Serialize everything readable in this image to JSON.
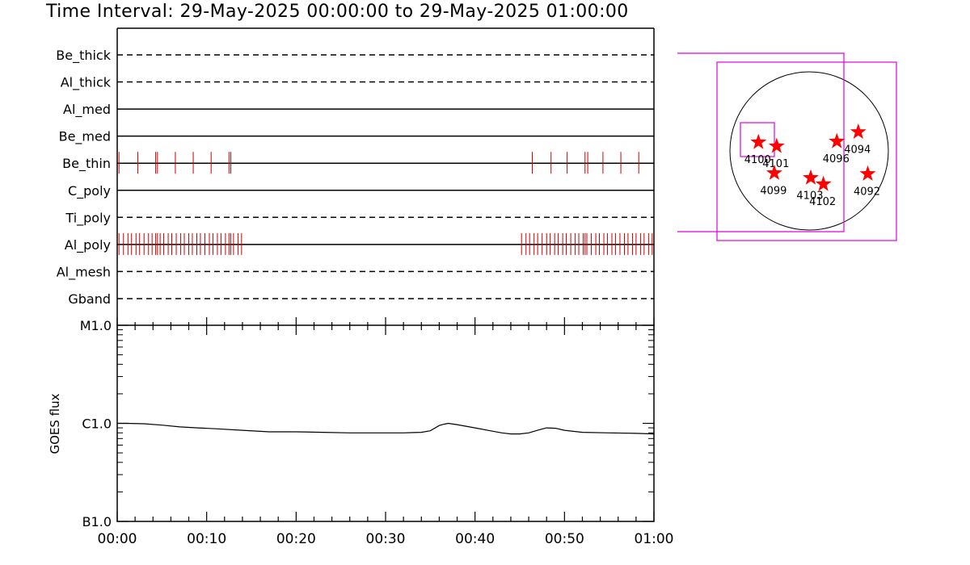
{
  "header": {
    "title": "Time Interval: 29-May-2025 00:00:00 to 29-May-2025 01:00:00"
  },
  "colors": {
    "axis": "#000000",
    "event_ticks": "#cc0000",
    "fov_box": "#e000e0",
    "star": "#ff0000"
  },
  "chart_data": [
    {
      "type": "timeline",
      "title": "",
      "x_unit": "minutes after 29-May-2025 00:00:00",
      "xlim": [
        0,
        60
      ],
      "channels": [
        {
          "name": "Be_thick",
          "style": "dashed",
          "events": []
        },
        {
          "name": "Al_thick",
          "style": "dashed",
          "events": []
        },
        {
          "name": "Al_med",
          "style": "solid",
          "events": []
        },
        {
          "name": "Be_med",
          "style": "solid",
          "events": []
        },
        {
          "name": "Be_thin",
          "style": "solid",
          "events": [
            0.2,
            2.3,
            4.3,
            4.5,
            6.5,
            8.5,
            10.5,
            12.5,
            12.7,
            46.4,
            48.5,
            50.3,
            52.3,
            52.6,
            54.3,
            56.3,
            58.3
          ]
        },
        {
          "name": "C_poly",
          "style": "solid",
          "events": []
        },
        {
          "name": "Ti_poly",
          "style": "dashed",
          "events": []
        },
        {
          "name": "Al_poly",
          "style": "solid",
          "events": [
            0.2,
            0.7,
            1.2,
            1.6,
            2.1,
            2.5,
            3.0,
            3.5,
            3.9,
            4.3,
            4.5,
            4.8,
            5.2,
            5.7,
            6.1,
            6.6,
            7.1,
            7.5,
            8.0,
            8.4,
            8.9,
            9.3,
            9.8,
            10.3,
            10.7,
            11.2,
            11.6,
            12.1,
            12.5,
            12.7,
            13.0,
            13.5,
            13.9,
            45.2,
            45.7,
            46.1,
            46.6,
            47.0,
            47.5,
            48.0,
            48.4,
            48.9,
            49.3,
            49.8,
            50.2,
            50.7,
            51.2,
            51.6,
            52.1,
            52.3,
            52.5,
            53.0,
            53.5,
            53.9,
            54.4,
            54.8,
            55.3,
            55.7,
            56.2,
            56.7,
            57.1,
            57.6,
            58.0,
            58.5,
            58.9,
            59.4,
            59.8
          ]
        },
        {
          "name": "Al_mesh",
          "style": "dashed",
          "events": []
        },
        {
          "name": "Gband",
          "style": "dashed",
          "events": []
        }
      ]
    },
    {
      "type": "line",
      "title": "",
      "ylabel": "GOES flux",
      "xlabel": "",
      "y_scale": "log",
      "ylim_ticks": [
        "B1.0",
        "C1.0",
        "M1.0"
      ],
      "x_ticks": [
        "00:00",
        "00:10",
        "00:20",
        "00:30",
        "00:40",
        "00:50",
        "01:00"
      ],
      "series": [
        {
          "x": [
            0,
            1,
            3,
            5,
            7,
            9,
            11,
            14,
            17,
            20,
            23,
            26,
            29,
            32,
            34,
            35,
            36,
            36.5,
            37,
            38,
            40,
            42,
            43,
            44,
            45,
            46,
            47,
            48,
            49,
            50,
            52,
            55,
            58,
            60
          ],
          "y": [
            1.0,
            1.0,
            0.99,
            0.96,
            0.92,
            0.9,
            0.88,
            0.85,
            0.82,
            0.82,
            0.81,
            0.8,
            0.8,
            0.8,
            0.81,
            0.84,
            0.95,
            0.98,
            1.0,
            0.97,
            0.9,
            0.83,
            0.8,
            0.78,
            0.78,
            0.8,
            0.85,
            0.9,
            0.89,
            0.85,
            0.81,
            0.8,
            0.79,
            0.78
          ]
        }
      ]
    },
    {
      "type": "scatter",
      "title": "",
      "description_points": "sunspot region markers on solar disk",
      "points": [
        {
          "label": "4094",
          "x": 0.62,
          "y": 0.24
        },
        {
          "label": "4096",
          "x": 0.35,
          "y": 0.12
        },
        {
          "label": "4100",
          "x": -0.64,
          "y": 0.11
        },
        {
          "label": "4101",
          "x": -0.41,
          "y": 0.06
        },
        {
          "label": "4099",
          "x": -0.44,
          "y": -0.28
        },
        {
          "label": "4103",
          "x": 0.02,
          "y": -0.34
        },
        {
          "label": "4102",
          "x": 0.18,
          "y": -0.42
        },
        {
          "label": "4092",
          "x": 0.74,
          "y": -0.29
        }
      ]
    }
  ]
}
